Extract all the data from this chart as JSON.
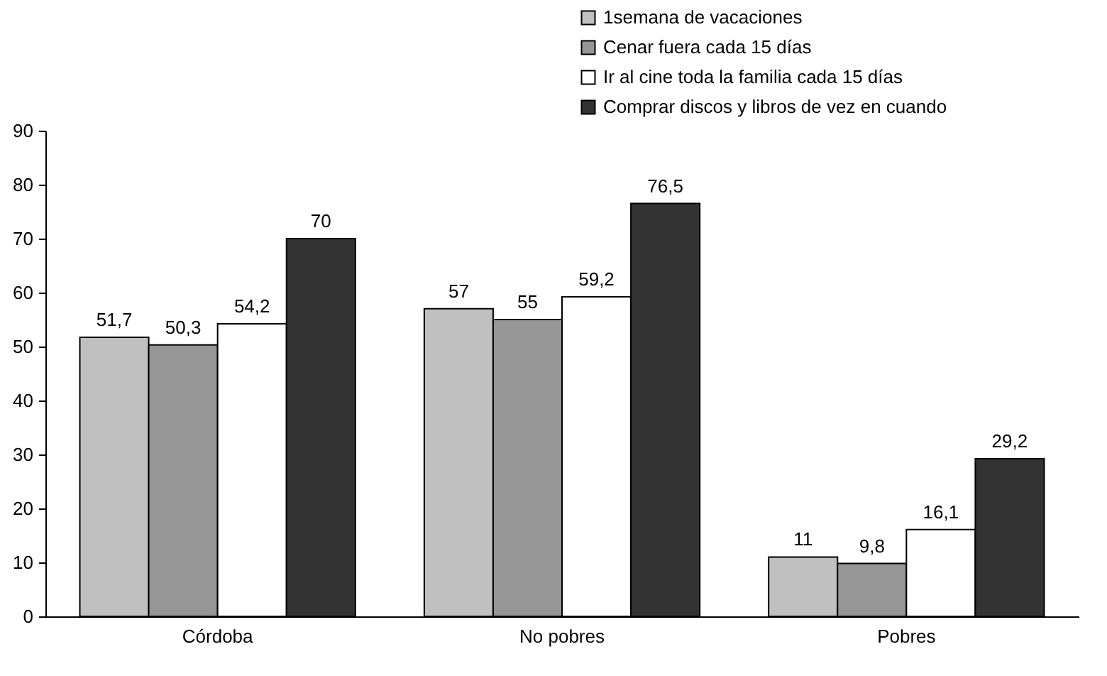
{
  "chart_data": {
    "type": "bar",
    "categories": [
      "Córdoba",
      "No pobres",
      "Pobres"
    ],
    "series": [
      {
        "name": "1semana de vacaciones",
        "color": "#c0c0c0",
        "values": [
          51.7,
          57,
          11
        ],
        "value_labels": [
          "51,7",
          "57",
          "11"
        ]
      },
      {
        "name": "Cenar fuera cada 15 días",
        "color": "#969696",
        "values": [
          50.3,
          55,
          9.8
        ],
        "value_labels": [
          "50,3",
          "55",
          "9,8"
        ]
      },
      {
        "name": "Ir al cine toda la familia cada 15 días",
        "color": "#ffffff",
        "values": [
          54.2,
          59.2,
          16.1
        ],
        "value_labels": [
          "54,2",
          "59,2",
          "16,1"
        ]
      },
      {
        "name": "Comprar discos y libros de vez en cuando",
        "color": "#333333",
        "values": [
          70,
          76.5,
          29.2
        ],
        "value_labels": [
          "70",
          "76,5",
          "29,2"
        ]
      }
    ],
    "ylim": [
      0,
      90
    ],
    "yticks": [
      0,
      10,
      20,
      30,
      40,
      50,
      60,
      70,
      80,
      90
    ],
    "grid": false,
    "legend": "top right"
  }
}
